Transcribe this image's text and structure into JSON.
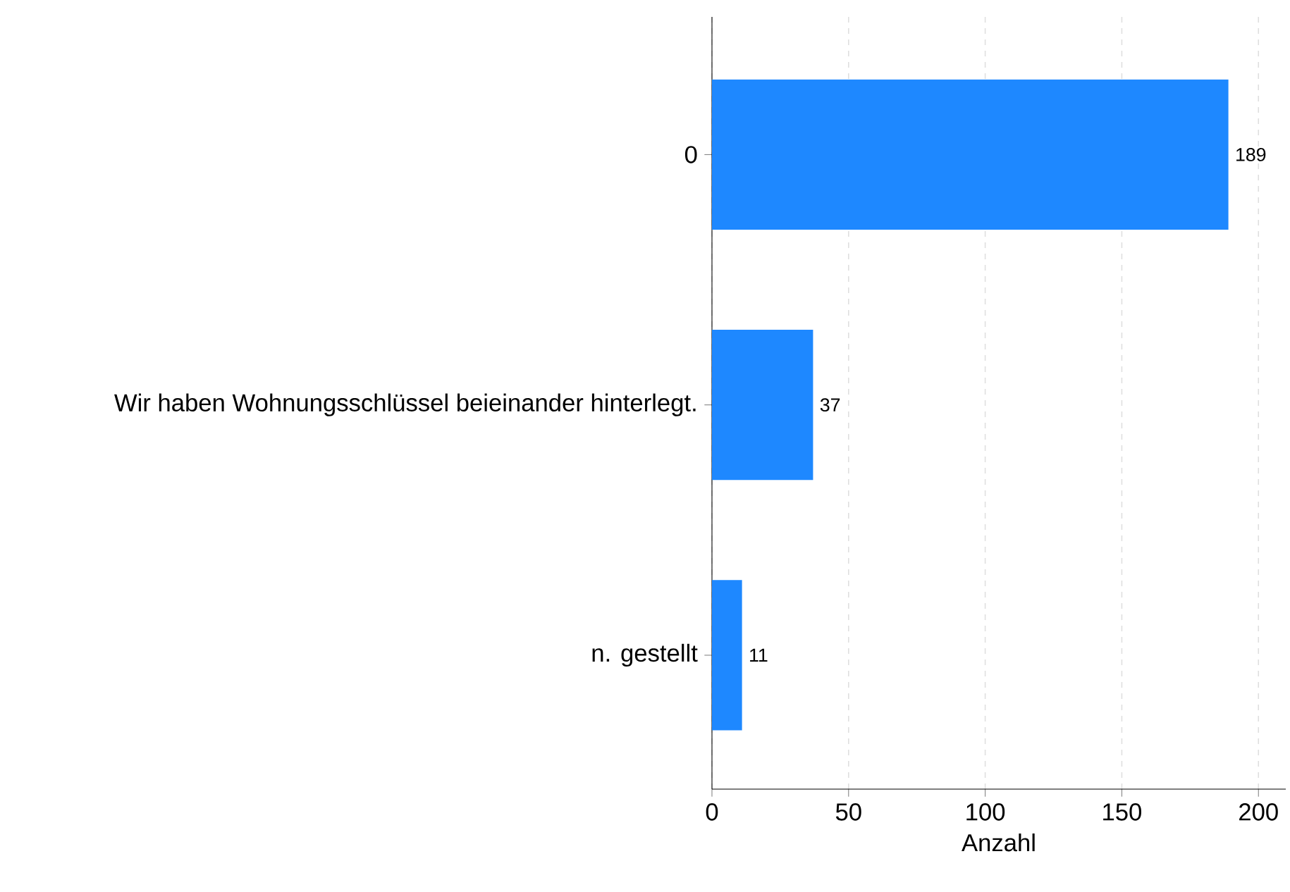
{
  "chart_data": {
    "type": "bar",
    "orientation": "horizontal",
    "categories": [
      "0",
      "Wir haben Wohnungsschlüssel beieinander hinterlegt.",
      "n. gestellt"
    ],
    "values": [
      189,
      37,
      11
    ],
    "color": "#1e88ff",
    "xlabel": "Anzahl",
    "xlim": [
      0,
      210
    ],
    "xticks": [
      0,
      50,
      100,
      150,
      200
    ],
    "grid": "x",
    "data_labels": true
  }
}
